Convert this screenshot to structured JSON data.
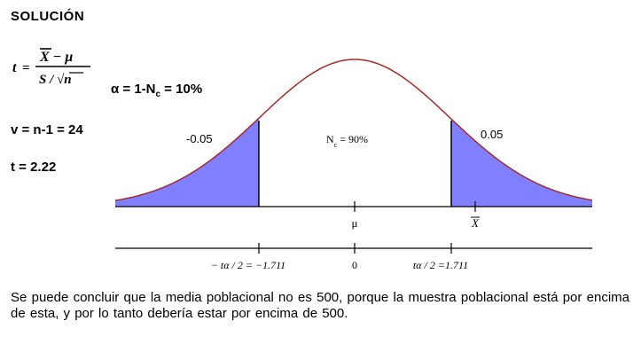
{
  "document": {
    "title": "SOLUCIÓN",
    "formula": {
      "lhs": "t",
      "equals": "=",
      "numerator": "X − μ",
      "denominator": "S / √n"
    },
    "alpha_line": {
      "prefix": "α = 1-N",
      "sub": "c",
      "suffix": " = 10%"
    },
    "degrees_of_freedom": "v = n-1 = 24",
    "t_value": "t = 2.22",
    "figure": {
      "left_tail_label": "-0.05",
      "center_label_prefix": "N",
      "center_label_sub": "c",
      "center_label_suffix": " = 90%",
      "right_tail_label": "0.05",
      "mu_label": "μ",
      "xbar_label": "X",
      "left_critical_label": "− tα / 2 = −1.711",
      "zero_label": "0",
      "right_critical_label": "tα / 2 =1.711",
      "colors": {
        "curve": "#a52a2a",
        "tail_fill": "#8080ff"
      }
    },
    "conclusion": "Se puede concluir que la media poblacional no es 500, porque la muestra poblacional está por encima de esta, y por lo tanto debería estar por encima de 500."
  }
}
